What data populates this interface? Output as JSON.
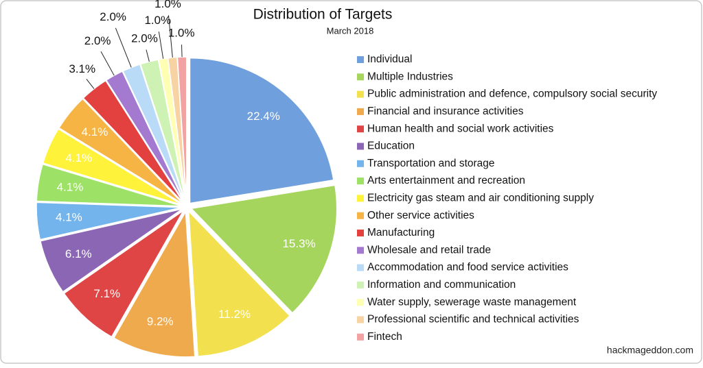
{
  "chart_data": {
    "type": "pie",
    "title": "Distribution of Targets",
    "subtitle": "March 2018",
    "source": "hackmageddon.com",
    "categories": [
      "Individual",
      "Multiple Industries",
      "Public administration and defence, compulsory social security",
      "Financial and insurance activities",
      "Human health and social work activities",
      "Education",
      "Transportation and storage",
      "Arts entertainment and recreation",
      "Electricity gas steam and air conditioning supply",
      "Other service activities",
      "Manufacturing",
      "Wholesale and retail trade",
      "Accommodation and food service activities",
      "Information and communication",
      "Water supply, sewerage waste management",
      "Professional scientific and technical activities",
      "Fintech"
    ],
    "values": [
      22.4,
      15.3,
      11.2,
      9.2,
      7.1,
      6.1,
      4.1,
      4.1,
      4.1,
      4.1,
      3.1,
      2.0,
      2.0,
      2.0,
      1.0,
      1.0,
      1.0
    ],
    "value_labels": [
      "22.4%",
      "15.3%",
      "11.2%",
      "9.2%",
      "7.1%",
      "6.1%",
      "4.1%",
      "4.1%",
      "4.1%",
      "4.1%",
      "3.1%",
      "2.0%",
      "2.0%",
      "2.0%",
      "1.0%",
      "1.0%",
      "1.0%"
    ],
    "colors": [
      "#6f9fdc",
      "#a6d55e",
      "#f3e04e",
      "#f0aa4e",
      "#e04545",
      "#8a66b4",
      "#74b4ec",
      "#9de266",
      "#fff23a",
      "#f5b443",
      "#e34040",
      "#a47ad0",
      "#b9dbf7",
      "#cdf2b4",
      "#ffffb4",
      "#f7d2a2",
      "#f2a2a2"
    ],
    "legend": "right"
  }
}
